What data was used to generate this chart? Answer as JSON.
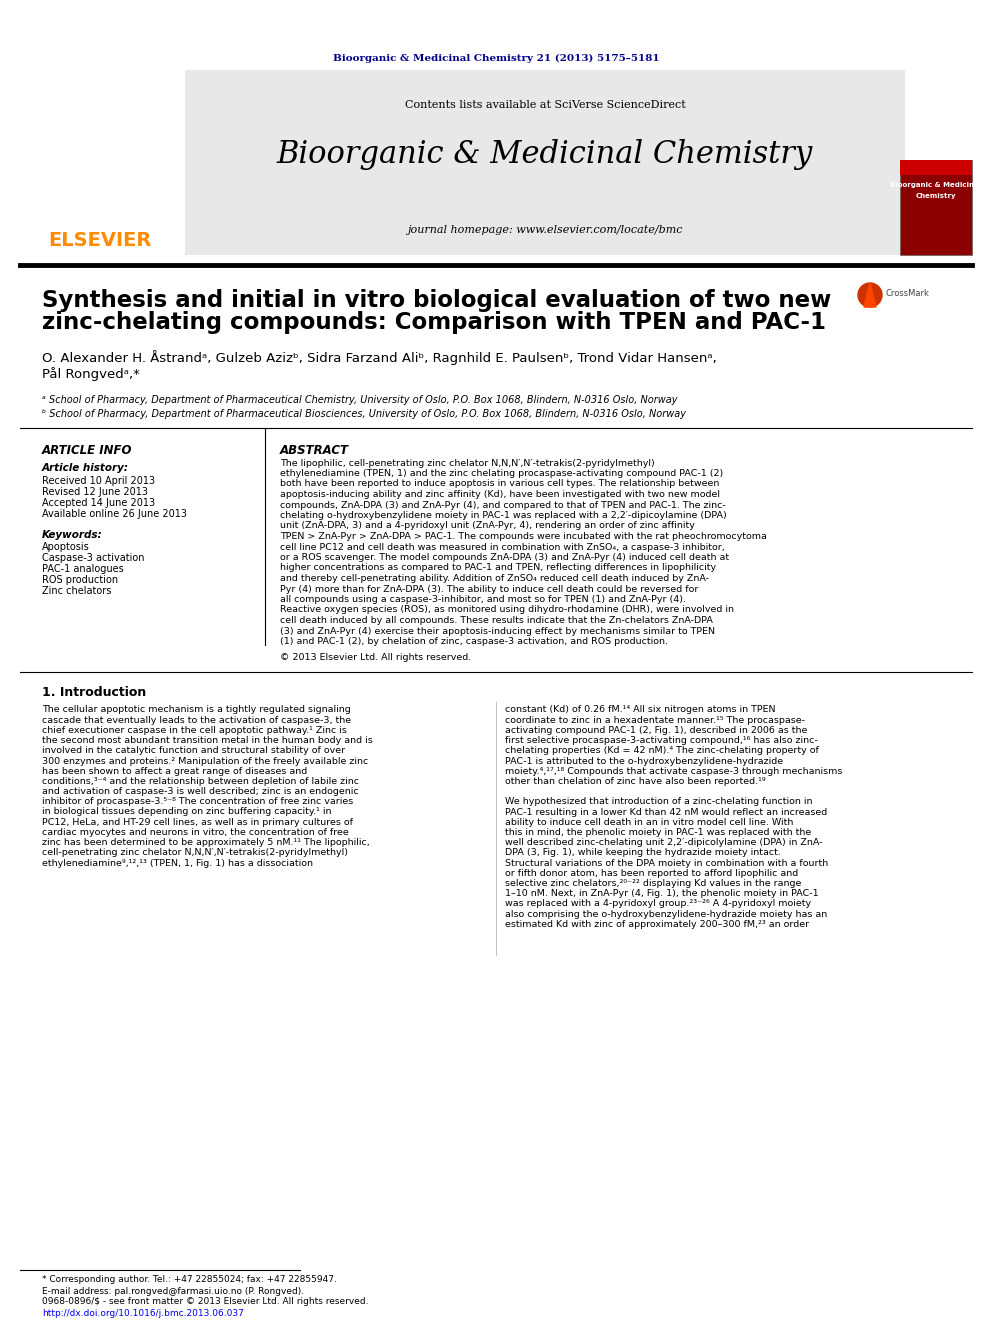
{
  "bg_color": "#ffffff",
  "top_journal_ref": "Bioorganic & Medicinal Chemistry 21 (2013) 5175–5181",
  "top_journal_color": "#00008B",
  "header_bg": "#e8e8e8",
  "contents_text": "Contents lists available at ",
  "sciverse_text": "SciVerse ScienceDirect",
  "sciverse_color": "#4169E1",
  "journal_title": "Bioorganic & Medicinal Chemistry",
  "homepage_text": "journal homepage: www.elsevier.com/locate/bmc",
  "paper_title_line1": "Synthesis and initial in vitro biological evaluation of two new",
  "paper_title_line2": "zinc-chelating compounds: Comparison with TPEN and PAC-1",
  "authors": "O. Alexander H. Åstrandᵃ, Gulzeb Azizᵇ, Sidra Farzand Aliᵇ, Ragnhild E. Paulsenᵇ, Trond Vidar Hansenᵃ,",
  "authors2": "Pål Rongvedᵃ,*",
  "affil_a": "ᵃ School of Pharmacy, Department of Pharmaceutical Chemistry, University of Oslo, P.O. Box 1068, Blindern, N-0316 Oslo, Norway",
  "affil_b": "ᵇ School of Pharmacy, Department of Pharmaceutical Biosciences, University of Oslo, P.O. Box 1068, Blindern, N-0316 Oslo, Norway",
  "article_info_title": "ARTICLE INFO",
  "article_history_title": "Article history:",
  "received": "Received 10 April 2013",
  "revised": "Revised 12 June 2013",
  "accepted": "Accepted 14 June 2013",
  "available": "Available online 26 June 2013",
  "keywords_title": "Keywords:",
  "keywords": [
    "Apoptosis",
    "Caspase-3 activation",
    "PAC-1 analogues",
    "ROS production",
    "Zinc chelators"
  ],
  "abstract_title": "ABSTRACT",
  "abstract_text": "The lipophilic, cell-penetrating zinc chelator N,N,N′,N′-tetrakis(2-pyridylmethyl) ethylenediamine (TPEN, 1) and the zinc chelating procaspase-activating compound PAC-1 (2) both have been reported to induce apoptosis in various cell types. The relationship between apoptosis-inducing ability and zinc affinity (Kd), have been investigated with two new model compounds, ZnA-DPA (3) and ZnA-Pyr (4), and compared to that of TPEN and PAC-1. The zinc-chelating o-hydroxybenzylidene moiety in PAC-1 was replaced with a 2,2′-dipicoylamine (DPA) unit (ZnA-DPA, 3) and a 4-pyridoxyl unit (ZnA-Pyr, 4), rendering an order of zinc affinity TPEN > ZnA-Pyr > ZnA-DPA > PAC-1. The compounds were incubated with the rat pheochromocytoma cell line PC12 and cell death was measured in combination with ZnSO₄, a caspase-3 inhibitor, or a ROS scavenger. The model compounds ZnA-DPA (3) and ZnA-Pyr (4) induced cell death at higher concentrations as compared to PAC-1 and TPEN, reflecting differences in lipophilicity and thereby cell-penetrating ability. Addition of ZnSO₄ reduced cell death induced by ZnA-Pyr (4) more than for ZnA-DPA (3). The ability to induce cell death could be reversed for all compounds using a caspase-3-inhibitor, and most so for TPEN (1) and ZnA-Pyr (4). Reactive oxygen species (ROS), as monitored using dihydro-rhodamine (DHR), were involved in cell death induced by all compounds. These results indicate that the Zn-chelators ZnA-DPA (3) and ZnA-Pyr (4) exercise their apoptosis-inducing effect by mechanisms similar to TPEN (1) and PAC-1 (2), by chelation of zinc, caspase-3 activation, and ROS production.",
  "copyright": "© 2013 Elsevier Ltd. All rights reserved.",
  "intro_title": "1. Introduction",
  "intro_col1": "The cellular apoptotic mechanism is a tightly regulated signaling cascade that eventually leads to the activation of caspase-3, the chief executioner caspase in the cell apoptotic pathway.¹ Zinc is the second most abundant transition metal in the human body and is involved in the catalytic function and structural stability of over 300 enzymes and proteins.² Manipulation of the freely available zinc has been shown to affect a great range of diseases and conditions,³⁻⁴ and the relationship between depletion of labile zinc and activation of caspase-3 is well described; zinc is an endogenic inhibitor of procaspase-3.⁵⁻⁸ The concentration of free zinc varies in biological tissues depending on zinc buffering capacity.¹ in PC12, HeLa, and HT-29 cell lines, as well as in primary cultures of cardiac myocytes and neurons in vitro, the concentration of free zinc has been determined to be approximately 5 nM.¹¹ The lipophilic, cell-penetrating zinc chelator N,N,N′,N′-tetrakis(2-pyridylmethyl) ethylenediamine⁹,¹²,¹³ (TPEN, 1, Fig. 1) has a dissociation",
  "intro_col2": "constant (Kd) of 0.26 fM.¹⁴ All six nitrogen atoms in TPEN coordinate to zinc in a hexadentate manner.¹⁵ The procaspase-activating compound PAC-1 (2, Fig. 1), described in 2006 as the first selective procaspase-3-activating compound,¹⁶ has also zinc-chelating properties (Kd = 42 nM).⁴ The zinc-chelating property of PAC-1 is attributed to the o-hydroxybenzylidene-hydrazide moiety.⁴,¹⁷,¹⁸ Compounds that activate caspase-3 through mechanisms other than chelation of zinc have also been reported.¹⁹\n\nWe hypothesized that introduction of a zinc-chelating function in PAC-1 resulting in a lower Kd than 42 nM would reflect an increased ability to induce cell death in an in vitro model cell line. With this in mind, the phenolic moiety in PAC-1 was replaced with the well described zinc-chelating unit 2,2′-dipicolylamine (DPA) in ZnA-DPA (3, Fig. 1), while keeping the hydrazide moiety intact. Structural variations of the DPA moiety in combination with a fourth or fifth donor atom, has been reported to afford lipophilic and selective zinc chelators,²⁰⁻²² displaying Kd values in the range 1–10 nM. Next, in ZnA-Pyr (4, Fig. 1), the phenolic moiety in PAC-1 was replaced with a 4-pyridoxyl group.²³⁻²⁶ A 4-pyridoxyl moiety also comprising the o-hydroxybenzylidene-hydrazide moiety has an estimated Kd with zinc of approximately 200–300 fM,²³ an order",
  "footnote1": "* Corresponding author. Tel.: +47 22855024; fax: +47 22855947.",
  "footnote2": "E-mail address: pal.rongved@farmasi.uio.no (P. Rongved).",
  "footnote3": "0968-0896/$ - see front matter © 2013 Elsevier Ltd. All rights reserved.",
  "footnote4": "http://dx.doi.org/10.1016/j.bmc.2013.06.037"
}
